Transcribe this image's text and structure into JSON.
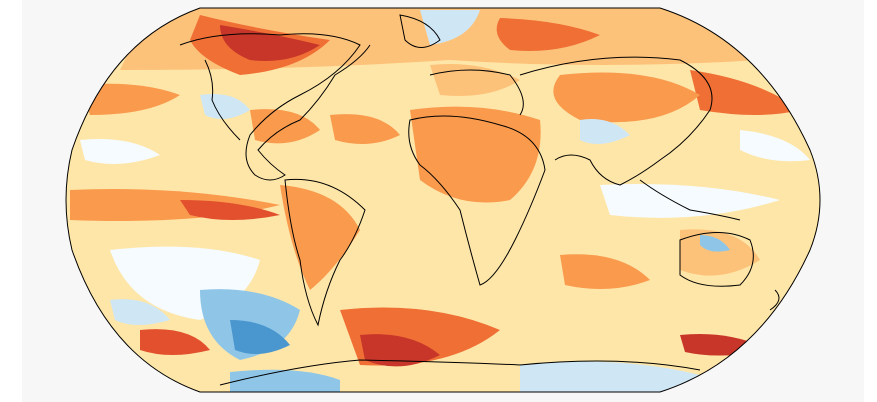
{
  "map": {
    "projection": "robinson-like",
    "colors": {
      "deep_red": "#c8362a",
      "red": "#e2502e",
      "orange_red": "#ef6f35",
      "orange": "#f99a4d",
      "light_orange": "#fdc27a",
      "pale_orange": "#fee6a8",
      "cream": "#fff4cf",
      "white": "#f5fbff",
      "pale_blue": "#cfe7f5",
      "light_blue": "#8fc6e8",
      "blue": "#4a96cf",
      "coast": "#000000",
      "panel": "#f7f7f7"
    }
  }
}
